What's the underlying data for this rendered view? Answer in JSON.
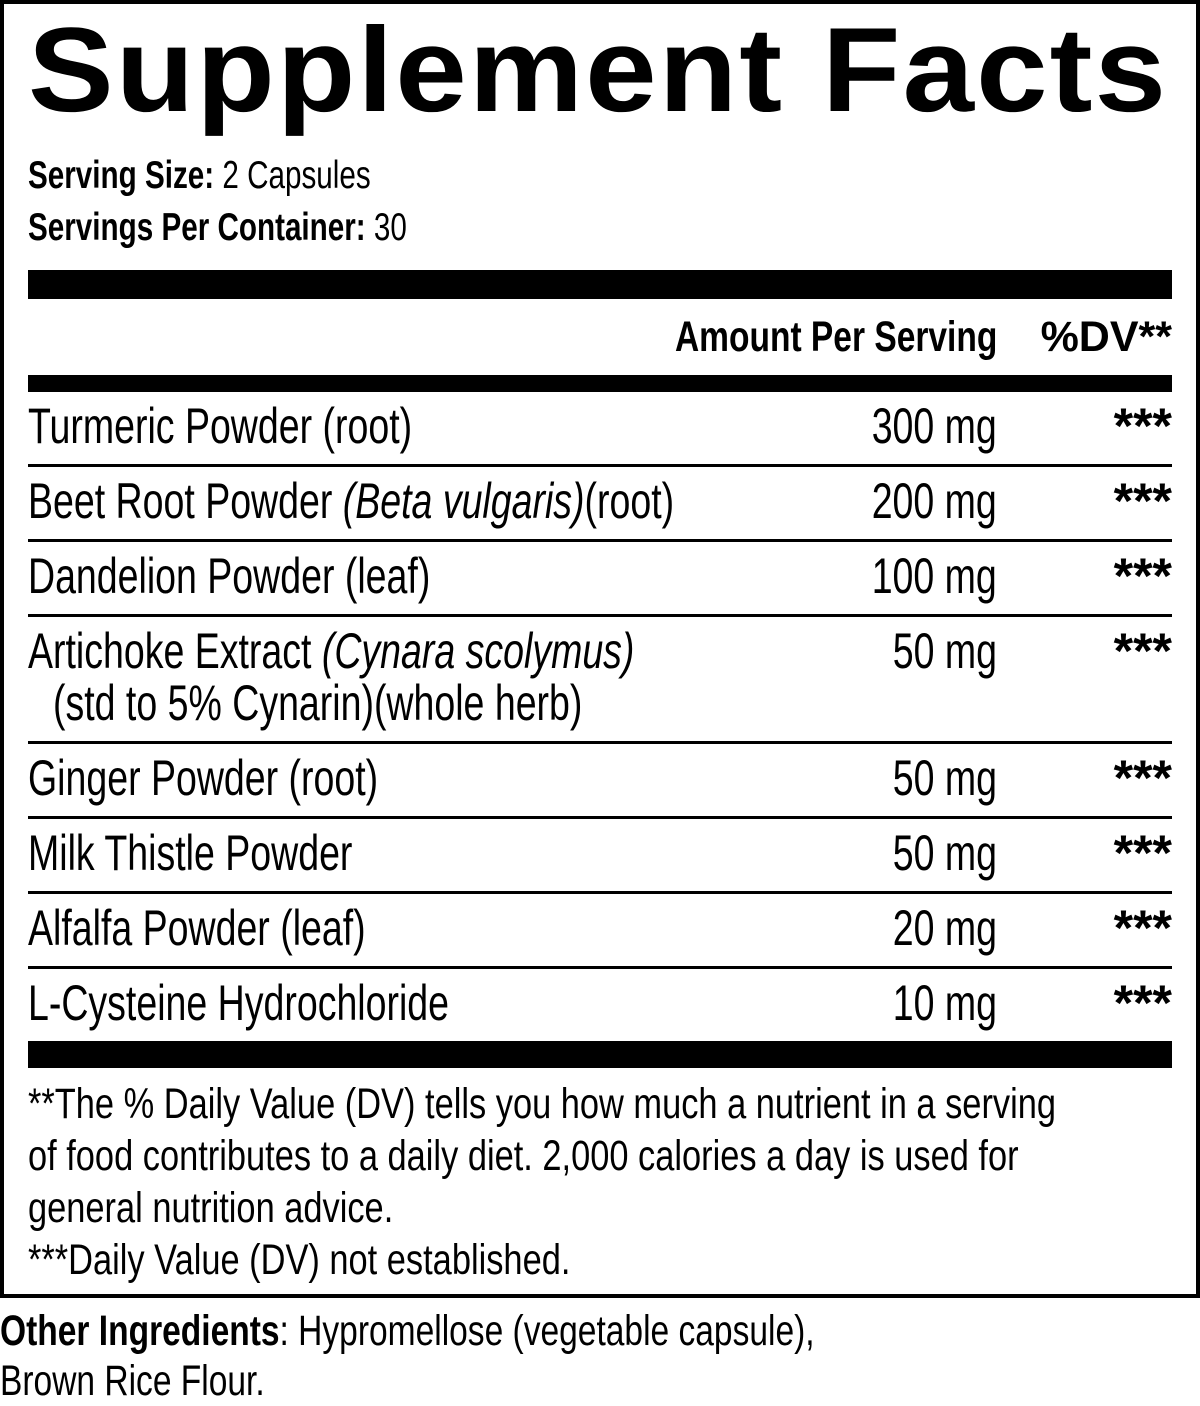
{
  "colors": {
    "ink": "#000000",
    "paper": "#ffffff"
  },
  "title": "Supplement Facts",
  "serving_info": {
    "serving_size_label": "Serving Size:",
    "serving_size_value": "2 Capsules",
    "servings_per_container_label": "Servings Per Container:",
    "servings_per_container_value": "30"
  },
  "table": {
    "headers": {
      "amount": "Amount Per Serving",
      "dv": "%DV**"
    },
    "rows": [
      {
        "name": [
          {
            "text": "Turmeric Powder (root)"
          }
        ],
        "amount": "300 mg",
        "dv": "***"
      },
      {
        "name": [
          {
            "text": "Beet Root Powder "
          },
          {
            "text": "(Beta vulgaris)",
            "italic": true
          },
          {
            "text": "(root)"
          }
        ],
        "amount": "200 mg",
        "dv": "***"
      },
      {
        "name": [
          {
            "text": "Dandelion Powder (leaf)"
          }
        ],
        "amount": "100 mg",
        "dv": "***"
      },
      {
        "name": [
          {
            "text": "Artichoke Extract "
          },
          {
            "text": "(Cynara scolymus)",
            "italic": true
          }
        ],
        "name_line2": "(std to 5% Cynarin)(whole herb)",
        "amount": "50 mg",
        "dv": "***"
      },
      {
        "name": [
          {
            "text": "Ginger Powder (root)"
          }
        ],
        "amount": "50 mg",
        "dv": "***"
      },
      {
        "name": [
          {
            "text": "Milk Thistle Powder"
          }
        ],
        "amount": "50 mg",
        "dv": "***"
      },
      {
        "name": [
          {
            "text": "Alfalfa Powder (leaf)"
          }
        ],
        "amount": "20 mg",
        "dv": "***"
      },
      {
        "name": [
          {
            "text": "L-Cysteine Hydrochloride"
          }
        ],
        "amount": "10 mg",
        "dv": "***"
      }
    ]
  },
  "footnote": {
    "lines": [
      "**The % Daily Value (DV) tells you how much a nutrient in a serving",
      "of food contributes to a daily diet. 2,000 calories a day is used for",
      "general nutrition advice.",
      "***Daily Value (DV) not established."
    ]
  },
  "other_ingredients": {
    "label": "Other Ingredients",
    "text": ": Hypromellose (vegetable capsule),",
    "line2": "Brown Rice Flour."
  }
}
